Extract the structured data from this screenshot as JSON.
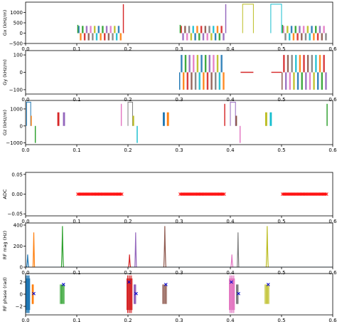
{
  "chart_data": [
    {
      "type": "line",
      "ylabel": "Gx (kHz/m)",
      "xlim": [
        0,
        0.6
      ],
      "ylim": [
        -500,
        1500
      ],
      "xticks": [
        "0.0",
        "0.1",
        "0.2",
        "0.3",
        "0.4",
        "0.5",
        "0.6"
      ],
      "yticks": [
        {
          "v": 1000,
          "t": "1000"
        },
        {
          "v": 500,
          "t": "500"
        },
        {
          "v": 0,
          "t": "0"
        },
        {
          "v": -500,
          "t": "−500"
        }
      ],
      "readout_blocks": [
        {
          "x0": 0.102,
          "x1": 0.188,
          "hi": 350,
          "lo": -350
        },
        {
          "x0": 0.302,
          "x1": 0.389,
          "hi": 350,
          "lo": -350
        },
        {
          "x0": 0.502,
          "x1": 0.589,
          "hi": 350,
          "lo": -350
        }
      ],
      "pulses": [
        {
          "x0": 0.101,
          "x1": 0.103,
          "y": 400,
          "color": "#2ca02c"
        },
        {
          "x0": 0.19,
          "x1": 0.192,
          "y": 1400,
          "color": "#d62728"
        },
        {
          "x0": 0.301,
          "x1": 0.303,
          "y": 400,
          "color": "#2ca02c"
        },
        {
          "x0": 0.39,
          "x1": 0.392,
          "y": 1400,
          "color": "#9467bd"
        },
        {
          "x0": 0.424,
          "x1": 0.445,
          "y": 1400,
          "color": "#bcbd22"
        },
        {
          "x0": 0.479,
          "x1": 0.5,
          "y": 1400,
          "color": "#17becf"
        },
        {
          "x0": 0.501,
          "x1": 0.503,
          "y": 400,
          "color": "#2ca02c"
        }
      ]
    },
    {
      "type": "line",
      "ylabel": "Gy (kHz/m)",
      "xlim": [
        0,
        0.6
      ],
      "ylim": [
        -125,
        125
      ],
      "xticks": [
        "0.0",
        "0.1",
        "0.2",
        "0.3",
        "0.4",
        "0.5",
        "0.6"
      ],
      "yticks": [
        {
          "v": 100,
          "t": "100"
        },
        {
          "v": 0,
          "t": "0"
        },
        {
          "v": -100,
          "t": "−100"
        }
      ],
      "readout_blocks": [
        {
          "x0": 0.303,
          "x1": 0.389,
          "hi": 100,
          "lo": -100
        },
        {
          "x0": 0.503,
          "x1": 0.589,
          "hi": 100,
          "lo": -100
        }
      ],
      "pulses": [
        {
          "x0": 0.3,
          "x1": 0.302,
          "y": -100,
          "color": "#1f77b4"
        },
        {
          "x0": 0.42,
          "x1": 0.445,
          "y": 0,
          "color": "#d62728",
          "flat": true
        },
        {
          "x0": 0.48,
          "x1": 0.5,
          "y": 0,
          "color": "#d62728",
          "flat": true
        },
        {
          "x0": 0.5,
          "x1": 0.502,
          "y": -100,
          "color": "#8c564b"
        }
      ]
    },
    {
      "type": "line",
      "ylabel": "Gz (kHz/m)",
      "xlim": [
        0,
        0.6
      ],
      "ylim": [
        -1100,
        1500
      ],
      "xticks": [
        "0.0",
        "0.1",
        "0.2",
        "0.3",
        "0.4",
        "0.5",
        "0.6"
      ],
      "yticks": [
        {
          "v": 1000,
          "t": "1000"
        },
        {
          "v": 0,
          "t": "0"
        },
        {
          "v": -1000,
          "t": "−1000"
        }
      ],
      "pulses": [
        {
          "x0": 0.002,
          "x1": 0.01,
          "y": 1400,
          "color": "#1f77b4"
        },
        {
          "x0": 0.01,
          "x1": 0.012,
          "y": 600,
          "color": "#ff7f0e"
        },
        {
          "x0": 0.018,
          "x1": 0.02,
          "y": -1000,
          "color": "#2ca02c"
        },
        {
          "x0": 0.062,
          "x1": 0.066,
          "y": 800,
          "color": "#d62728"
        },
        {
          "x0": 0.073,
          "x1": 0.077,
          "y": 800,
          "color": "#9467bd"
        },
        {
          "x0": 0.186,
          "x1": 0.188,
          "y": 1300,
          "color": "#e377c2"
        },
        {
          "x0": 0.2,
          "x1": 0.209,
          "y": 1400,
          "color": "#7f7f7f"
        },
        {
          "x0": 0.209,
          "x1": 0.212,
          "y": 600,
          "color": "#bcbd22"
        },
        {
          "x0": 0.217,
          "x1": 0.219,
          "y": -1000,
          "color": "#17becf"
        },
        {
          "x0": 0.268,
          "x1": 0.272,
          "y": 800,
          "color": "#1f77b4"
        },
        {
          "x0": 0.276,
          "x1": 0.28,
          "y": 800,
          "color": "#ff7f0e"
        },
        {
          "x0": 0.388,
          "x1": 0.39,
          "y": 1300,
          "color": "#d62728"
        },
        {
          "x0": 0.4,
          "x1": 0.41,
          "y": 1400,
          "color": "#9467bd"
        },
        {
          "x0": 0.41,
          "x1": 0.413,
          "y": 600,
          "color": "#8c564b"
        },
        {
          "x0": 0.418,
          "x1": 0.42,
          "y": -1000,
          "color": "#e377c2"
        },
        {
          "x0": 0.468,
          "x1": 0.472,
          "y": 800,
          "color": "#bcbd22"
        },
        {
          "x0": 0.477,
          "x1": 0.481,
          "y": 800,
          "color": "#17becf"
        },
        {
          "x0": 0.588,
          "x1": 0.59,
          "y": 1300,
          "color": "#2ca02c"
        }
      ]
    },
    {
      "type": "scatter",
      "ylabel": "ADC",
      "xlim": [
        0,
        0.6
      ],
      "ylim": [
        -0.055,
        0.055
      ],
      "xticks": [
        "0.0",
        "0.1",
        "0.2",
        "0.3",
        "0.4",
        "0.5",
        "0.6"
      ],
      "yticks": [
        {
          "v": 0.05,
          "t": "0.05"
        },
        {
          "v": 0.0,
          "t": "0.00"
        },
        {
          "v": -0.05,
          "t": "−0.05"
        }
      ],
      "adc_segments": [
        {
          "x0": 0.102,
          "x1": 0.188,
          "y": 0
        },
        {
          "x0": 0.302,
          "x1": 0.388,
          "y": 0
        },
        {
          "x0": 0.502,
          "x1": 0.588,
          "y": 0
        }
      ],
      "marker": "x",
      "color": "#ff0000"
    },
    {
      "type": "line",
      "ylabel": "RF mag (Hz)",
      "xlim": [
        0,
        0.6
      ],
      "ylim": [
        0,
        420
      ],
      "xticks": [
        "0.0",
        "0.1",
        "0.2",
        "0.3",
        "0.4",
        "0.5",
        "0.6"
      ],
      "yticks": [
        {
          "v": 400,
          "t": "400"
        },
        {
          "v": 200,
          "t": "200"
        },
        {
          "v": 0,
          "t": "0"
        }
      ],
      "peaks": [
        {
          "x": 0.004,
          "y": 120,
          "w": 0.004,
          "color": "#1f77b4"
        },
        {
          "x": 0.016,
          "y": 330,
          "w": 0.003,
          "color": "#ff7f0e"
        },
        {
          "x": 0.072,
          "y": 390,
          "w": 0.004,
          "color": "#2ca02c"
        },
        {
          "x": 0.203,
          "y": 120,
          "w": 0.004,
          "color": "#d62728"
        },
        {
          "x": 0.215,
          "y": 330,
          "w": 0.003,
          "color": "#9467bd"
        },
        {
          "x": 0.272,
          "y": 390,
          "w": 0.004,
          "color": "#8c564b"
        },
        {
          "x": 0.403,
          "y": 120,
          "w": 0.004,
          "color": "#e377c2"
        },
        {
          "x": 0.415,
          "y": 330,
          "w": 0.003,
          "color": "#7f7f7f"
        },
        {
          "x": 0.472,
          "y": 390,
          "w": 0.004,
          "color": "#bcbd22"
        }
      ]
    },
    {
      "type": "line",
      "ylabel": "RF phase (rad)",
      "xlim": [
        0,
        0.6
      ],
      "ylim": [
        -3.4,
        3.4
      ],
      "xticks": [
        "0.0",
        "0.1",
        "0.2",
        "0.3",
        "0.4",
        "0.5",
        "0.6"
      ],
      "yticks": [
        {
          "v": 2,
          "t": "2"
        },
        {
          "v": 0,
          "t": "0"
        },
        {
          "v": -2,
          "t": "−2"
        }
      ],
      "phase_groups": [
        {
          "x0": 0.0,
          "x1": 0.008,
          "color": "#1f77b4",
          "dense": true
        },
        {
          "x0": 0.013,
          "x1": 0.015,
          "color": "#ff7f0e",
          "dense": false
        },
        {
          "x0": 0.068,
          "x1": 0.075,
          "color": "#2ca02c",
          "dense": false
        },
        {
          "x0": 0.198,
          "x1": 0.208,
          "color": "#d62728",
          "dense": true
        },
        {
          "x0": 0.212,
          "x1": 0.215,
          "color": "#9467bd",
          "dense": false
        },
        {
          "x0": 0.268,
          "x1": 0.275,
          "color": "#8c564b",
          "dense": false
        },
        {
          "x0": 0.398,
          "x1": 0.408,
          "color": "#e377c2",
          "dense": true
        },
        {
          "x0": 0.412,
          "x1": 0.415,
          "color": "#7f7f7f",
          "dense": false
        },
        {
          "x0": 0.468,
          "x1": 0.475,
          "color": "#bcbd22",
          "dense": false
        }
      ],
      "x_markers": [
        {
          "x": 0.016,
          "y": 0.1
        },
        {
          "x": 0.074,
          "y": 1.6
        },
        {
          "x": 0.202,
          "y": 2.0
        },
        {
          "x": 0.216,
          "y": 0.1
        },
        {
          "x": 0.274,
          "y": 1.6
        },
        {
          "x": 0.402,
          "y": 2.0
        },
        {
          "x": 0.416,
          "y": 0.1
        },
        {
          "x": 0.474,
          "y": 1.6
        }
      ],
      "x_marker_color": "#0000cc"
    }
  ]
}
